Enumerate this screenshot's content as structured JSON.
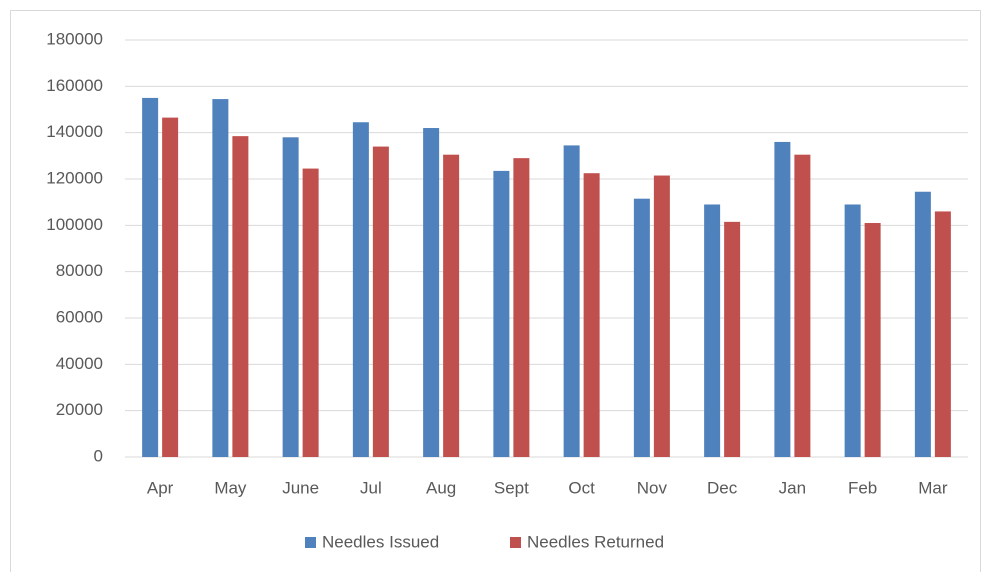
{
  "chart_data": {
    "type": "bar",
    "categories": [
      "Apr",
      "May",
      "June",
      "Jul",
      "Aug",
      "Sept",
      "Oct",
      "Nov",
      "Dec",
      "Jan",
      "Feb",
      "Mar"
    ],
    "series": [
      {
        "name": "Needles Issued",
        "color": "#4f81bd",
        "values": [
          155000,
          154500,
          138000,
          144500,
          142000,
          123500,
          134500,
          111500,
          109000,
          136000,
          109000,
          114500
        ]
      },
      {
        "name": "Needles Returned",
        "color": "#c0504d",
        "values": [
          146500,
          138500,
          124500,
          134000,
          130500,
          129000,
          122500,
          121500,
          101500,
          130500,
          101000,
          106000
        ]
      }
    ],
    "ylim": [
      0,
      180000
    ],
    "yticks": [
      0,
      20000,
      40000,
      60000,
      80000,
      100000,
      120000,
      140000,
      160000,
      180000
    ],
    "grid": true,
    "legend": "bottom"
  }
}
